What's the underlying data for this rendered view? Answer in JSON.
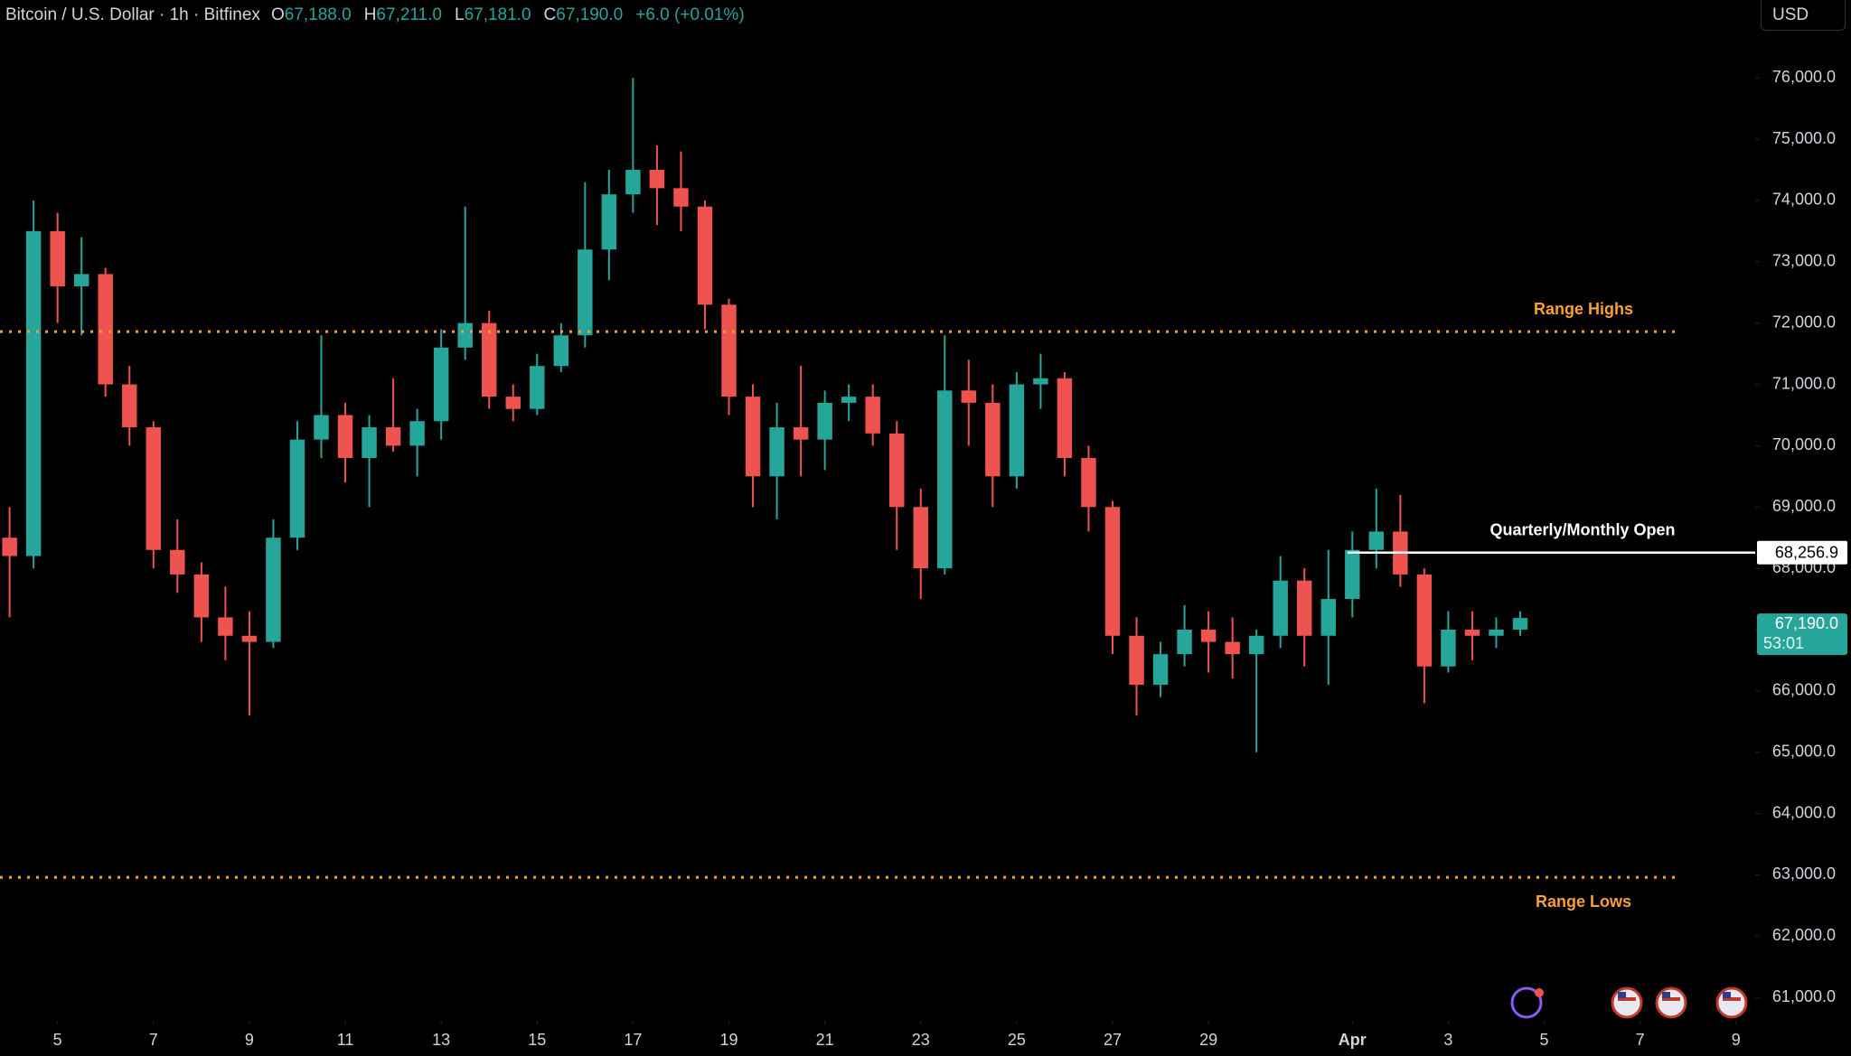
{
  "header": {
    "symbol": "Bitcoin / U.S. Dollar · 1h · Bitfinex",
    "ohlc": [
      {
        "key": "O",
        "value": "67,188.0"
      },
      {
        "key": "H",
        "value": "67,211.0"
      },
      {
        "key": "L",
        "value": "67,181.0"
      },
      {
        "key": "C",
        "value": "67,190.0"
      }
    ],
    "change": "+6.0 (+0.01%)",
    "currency": "USD"
  },
  "chart_data": {
    "type": "candlestick",
    "xlim": [
      3.8,
      40.4
    ],
    "ylim": [
      60620,
      77270
    ],
    "xticks": [
      5,
      7,
      9,
      11,
      13,
      15,
      17,
      19,
      21,
      23,
      25,
      27,
      29,
      {
        "value": 32,
        "label": "Apr"
      },
      {
        "value": 34,
        "label": "3"
      },
      {
        "value": 36,
        "label": "5"
      },
      {
        "value": 38,
        "label": "7"
      },
      {
        "value": 40,
        "label": "9"
      }
    ],
    "yticks": [
      {
        "value": 61000,
        "label": "61,000.0"
      },
      {
        "value": 62000,
        "label": "62,000.0"
      },
      {
        "value": 63000,
        "label": "63,000.0"
      },
      {
        "value": 64000,
        "label": "64,000.0"
      },
      {
        "value": 65000,
        "label": "65,000.0"
      },
      {
        "value": 66000,
        "label": "66,000.0"
      },
      {
        "value": 67000,
        "label": "67,000.0"
      },
      {
        "value": 68000,
        "label": "68,000.0"
      },
      {
        "value": 69000,
        "label": "69,000.0"
      },
      {
        "value": 70000,
        "label": "70,000.0"
      },
      {
        "value": 71000,
        "label": "71,000.0"
      },
      {
        "value": 72000,
        "label": "72,000.0"
      },
      {
        "value": 73000,
        "label": "73,000.0"
      },
      {
        "value": 74000,
        "label": "74,000.0"
      },
      {
        "value": 75000,
        "label": "75,000.0"
      },
      {
        "value": 76000,
        "label": "76,000.0"
      }
    ],
    "grid": false,
    "series": [
      {
        "up_color": "#26a69a",
        "down_color": "#ef5350",
        "x": [
          4,
          4.5,
          5,
          5.5,
          6,
          6.5,
          7,
          7.5,
          8,
          8.5,
          9,
          9.5,
          10,
          10.5,
          11,
          11.5,
          12,
          12.5,
          13,
          13.5,
          14,
          14.5,
          15,
          15.5,
          16,
          16.5,
          17,
          17.5,
          18,
          18.5,
          19,
          19.5,
          20,
          20.5,
          21,
          21.5,
          22,
          22.5,
          23,
          23.5,
          24,
          24.5,
          25,
          25.5,
          26,
          26.5,
          27,
          27.5,
          28,
          28.5,
          29,
          29.5,
          30,
          30.5,
          31,
          31.5,
          32,
          32.5,
          33,
          33.5,
          34,
          34.5,
          35,
          35.5
        ],
        "open": [
          68500,
          68200,
          73500,
          72600,
          72800,
          71000,
          70300,
          68300,
          67900,
          67200,
          66900,
          66800,
          68500,
          70100,
          70500,
          69800,
          70300,
          70000,
          70400,
          71600,
          72000,
          70800,
          70600,
          71300,
          71800,
          73200,
          74100,
          74500,
          74200,
          73900,
          72300,
          70800,
          69500,
          70300,
          70100,
          70700,
          70800,
          70200,
          69000,
          68000,
          70900,
          70700,
          69500,
          71000,
          71100,
          69800,
          69000,
          66900,
          66100,
          66600,
          67000,
          66800,
          66600,
          66900,
          67800,
          66900,
          67500,
          68300,
          68600,
          67900,
          66400,
          67000,
          66900,
          67000
        ],
        "high": [
          69000,
          74000,
          73800,
          73400,
          72900,
          71300,
          70400,
          68800,
          68100,
          67700,
          67300,
          68800,
          70400,
          71800,
          70700,
          70500,
          71100,
          70600,
          71900,
          73900,
          72200,
          71000,
          71500,
          72000,
          74300,
          74500,
          76000,
          74900,
          74800,
          74000,
          72400,
          71000,
          70700,
          71300,
          70900,
          71000,
          71000,
          70400,
          69300,
          71800,
          71400,
          71000,
          71200,
          71500,
          71200,
          70000,
          69100,
          67200,
          66800,
          67400,
          67300,
          67200,
          67000,
          68200,
          68000,
          68300,
          68600,
          69300,
          69200,
          68000,
          67300,
          67300,
          67200,
          67300
        ],
        "low": [
          67200,
          68000,
          72000,
          71800,
          70800,
          70000,
          68000,
          67600,
          66800,
          66500,
          65600,
          66700,
          68300,
          69800,
          69400,
          69000,
          69900,
          69500,
          70100,
          71400,
          70600,
          70400,
          70500,
          71200,
          71600,
          72700,
          73800,
          73600,
          73500,
          71900,
          70500,
          69000,
          68800,
          69500,
          69600,
          70400,
          70000,
          68300,
          67500,
          67900,
          70000,
          69000,
          69300,
          70600,
          69500,
          68600,
          66600,
          65600,
          65900,
          66400,
          66300,
          66200,
          65000,
          66700,
          66400,
          66100,
          67200,
          68000,
          67700,
          65800,
          66300,
          66500,
          66700,
          66900
        ],
        "close": [
          68200,
          73500,
          72600,
          72800,
          71000,
          70300,
          68300,
          67900,
          67200,
          66900,
          66800,
          68500,
          70100,
          70500,
          69800,
          70300,
          70000,
          70400,
          71600,
          72000,
          70800,
          70600,
          71300,
          71800,
          73200,
          74100,
          74500,
          74200,
          73900,
          72300,
          70800,
          69500,
          70300,
          70100,
          70700,
          70800,
          70200,
          69000,
          68000,
          70900,
          70700,
          69500,
          71000,
          71100,
          69800,
          69000,
          66900,
          66100,
          66600,
          67000,
          66800,
          66600,
          66900,
          67800,
          66900,
          67500,
          68300,
          68600,
          67900,
          66400,
          67000,
          66900,
          67000,
          67190
        ]
      }
    ],
    "annotations": [
      {
        "text": "Range Highs",
        "value": 71860,
        "color": "#f7a035",
        "style": "dotted"
      },
      {
        "text": "Range Lows",
        "value": 62960,
        "color": "#f7a035",
        "style": "dotted"
      },
      {
        "text": "Quarterly/Monthly Open",
        "value": 68256.9,
        "label": "68,256.9",
        "color": "#ffffff",
        "style": "solid",
        "x_start": 31.9
      }
    ],
    "last_price": {
      "label": "67,190.0",
      "countdown": "53:01",
      "color": "#26a69a"
    }
  }
}
